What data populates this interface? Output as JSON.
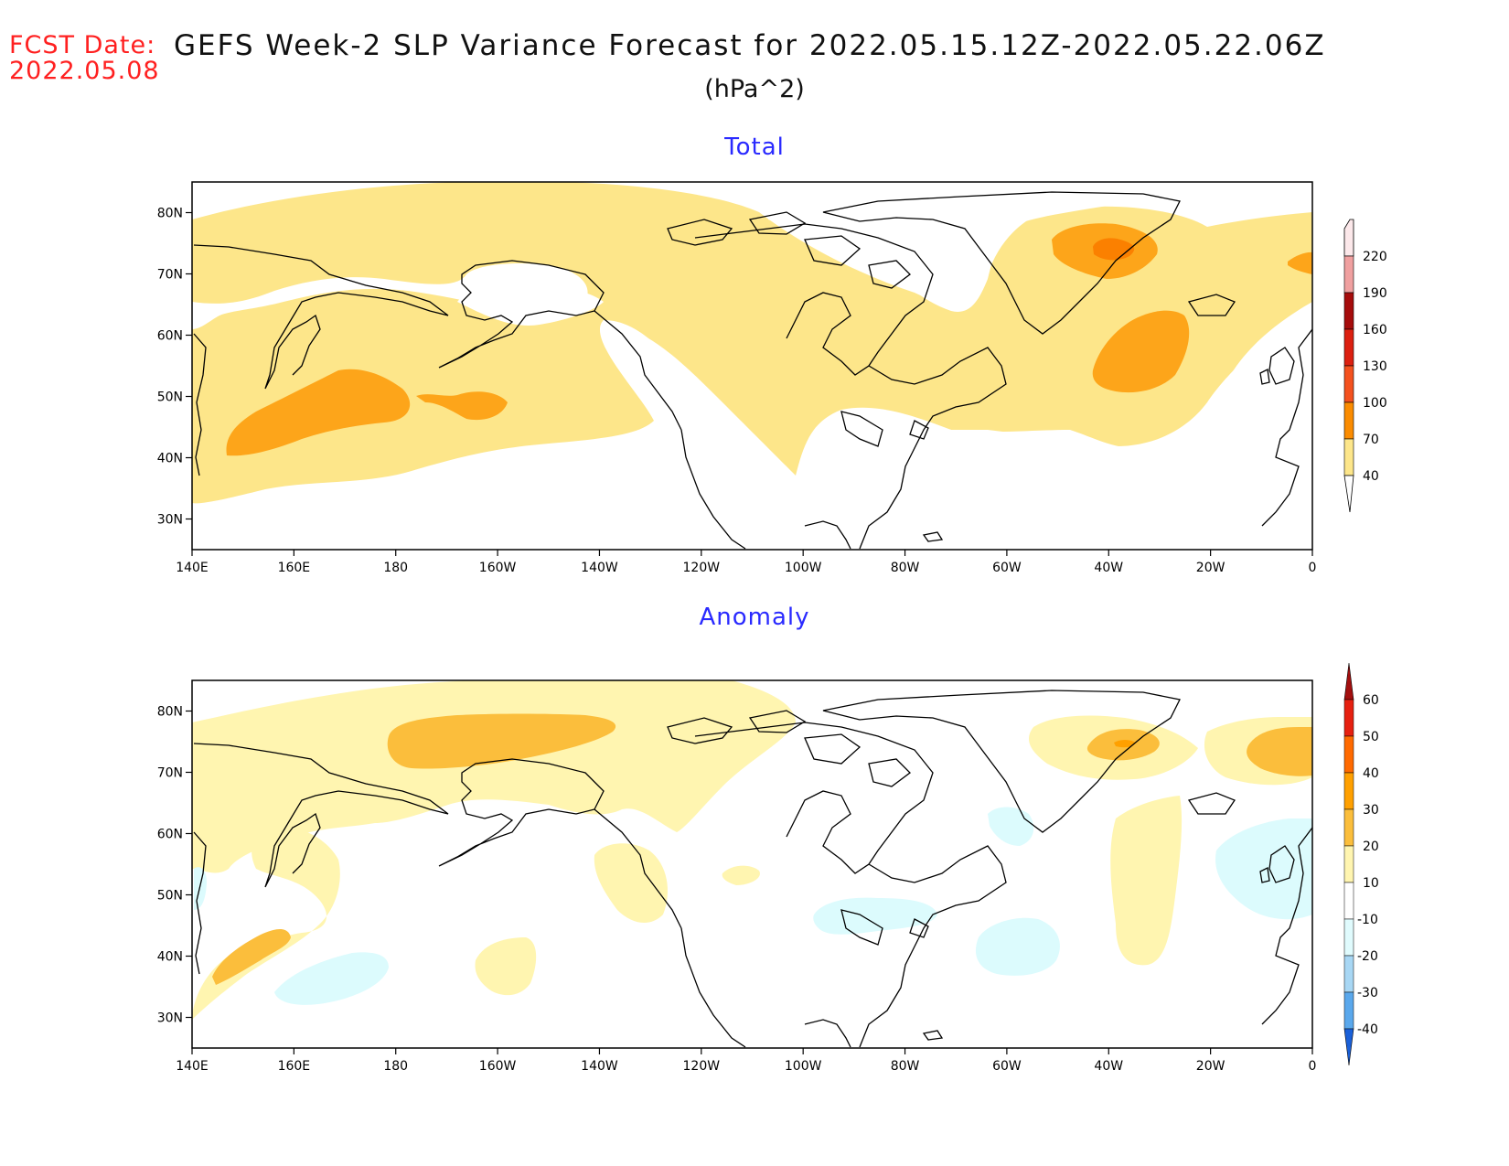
{
  "header": {
    "fcst_label": "FCST Date:",
    "fcst_date": "2022.05.08",
    "title": "GEFS Week-2 SLP Variance Forecast for 2022.05.15.12Z-2022.05.22.06Z",
    "units": "(hPa^2)"
  },
  "axes": {
    "lat_ticks": [
      "80N",
      "70N",
      "60N",
      "50N",
      "40N",
      "30N"
    ],
    "lon_ticks": [
      "140E",
      "160E",
      "180",
      "160W",
      "140W",
      "120W",
      "100W",
      "80W",
      "60W",
      "40W",
      "20W",
      "0"
    ]
  },
  "panels": [
    {
      "title": "Total",
      "colorbar": {
        "levels": [
          "40",
          "70",
          "100",
          "130",
          "160",
          "190",
          "220"
        ],
        "colors": [
          "#fde68a",
          "#fdb44b",
          "#fb8c00",
          "#f4511e",
          "#dc2010",
          "#a60c0c",
          "#f0a0a0",
          "#fce8ea"
        ]
      }
    },
    {
      "title": "Anomaly",
      "colorbar": {
        "levels": [
          "60",
          "50",
          "40",
          "30",
          "20",
          "10",
          "-10",
          "-20",
          "-30",
          "-40"
        ],
        "colors": [
          "#a30f0f",
          "#e62010",
          "#ff6a00",
          "#ffa000",
          "#fbbe3c",
          "#fff5b0",
          "#ffffff",
          "#e0fbfd",
          "#a8d7f4",
          "#5aa8ec",
          "#1a60d8"
        ]
      }
    }
  ],
  "chart_data": {
    "type": "heatmap",
    "colors": {
      "light": "#fde68a",
      "medium": "#fda51a",
      "strong": "#fb8000",
      "cyan": "#dcfbfd",
      "anom_light": "#fff5b0",
      "anom_med": "#fbbe3c"
    }
  }
}
